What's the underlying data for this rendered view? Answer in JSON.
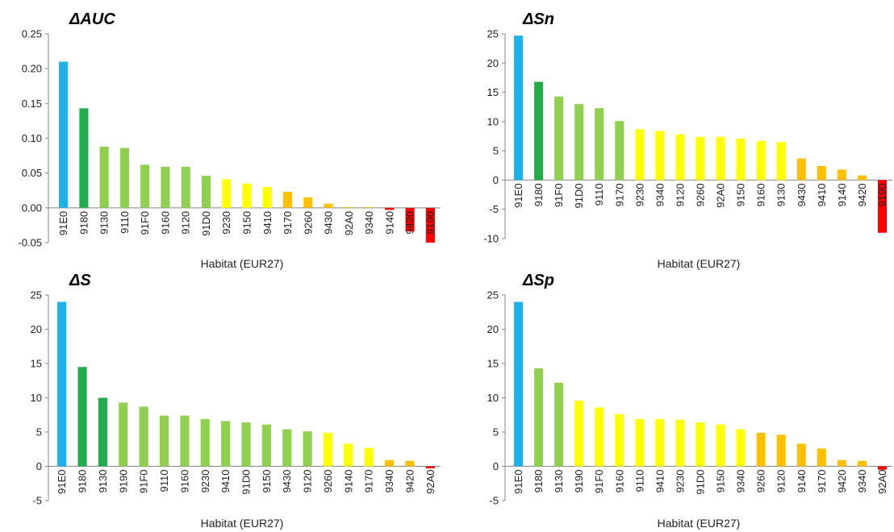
{
  "colors": {
    "blue": "#1fb1ea",
    "dark_green": "#22ac4c",
    "light_green": "#8fd14f",
    "yellow": "#ffff00",
    "orange": "#ffc000",
    "red": "#ff0000"
  },
  "chart_data": [
    {
      "type": "bar",
      "title": "ΔAUC",
      "xlabel": "Habitat (EUR27)",
      "ylabel": "",
      "ylim": [
        -0.05,
        0.25
      ],
      "yticks": [
        "-0.05",
        "0.00",
        "0.05",
        "0.10",
        "0.15",
        "0.20",
        "0.25"
      ],
      "grid": false,
      "categories": [
        "91E0",
        "9180",
        "9130",
        "9110",
        "91F0",
        "9160",
        "9120",
        "91D0",
        "9230",
        "9150",
        "9410",
        "9170",
        "9260",
        "9430",
        "92A0",
        "9340",
        "9140",
        "9420",
        "9190"
      ],
      "values": [
        0.21,
        0.143,
        0.088,
        0.086,
        0.062,
        0.059,
        0.059,
        0.046,
        0.041,
        0.035,
        0.03,
        0.023,
        0.015,
        0.006,
        0.001,
        0.001,
        -0.003,
        -0.034,
        -0.05
      ],
      "bar_colors": [
        "blue",
        "dark_green",
        "light_green",
        "light_green",
        "light_green",
        "light_green",
        "light_green",
        "light_green",
        "yellow",
        "yellow",
        "yellow",
        "orange",
        "orange",
        "orange",
        "orange",
        "orange",
        "red",
        "red",
        "red"
      ]
    },
    {
      "type": "bar",
      "title": "ΔSn",
      "xlabel": "Habitat (EUR27)",
      "ylabel": "",
      "ylim": [
        -10,
        25
      ],
      "yticks": [
        "-10",
        "-5",
        "0",
        "5",
        "10",
        "15",
        "20",
        "25"
      ],
      "grid": false,
      "categories": [
        "91E0",
        "9180",
        "91F0",
        "91D0",
        "9110",
        "9170",
        "9230",
        "9340",
        "9120",
        "9260",
        "92A0",
        "9150",
        "9160",
        "9130",
        "9430",
        "9410",
        "9140",
        "9420",
        "9190"
      ],
      "values": [
        24.7,
        16.8,
        14.3,
        13.0,
        12.3,
        10.1,
        8.7,
        8.4,
        7.8,
        7.4,
        7.4,
        7.1,
        6.7,
        6.5,
        3.7,
        2.4,
        1.8,
        0.8,
        -9.0
      ],
      "bar_colors": [
        "blue",
        "dark_green",
        "light_green",
        "light_green",
        "light_green",
        "light_green",
        "yellow",
        "yellow",
        "yellow",
        "yellow",
        "yellow",
        "yellow",
        "yellow",
        "yellow",
        "orange",
        "orange",
        "orange",
        "orange",
        "red"
      ]
    },
    {
      "type": "bar",
      "title": "ΔS",
      "xlabel": "Habitat (EUR27)",
      "ylabel": "",
      "ylim": [
        -5,
        25
      ],
      "yticks": [
        "-5",
        "0",
        "5",
        "10",
        "15",
        "20",
        "25"
      ],
      "grid": false,
      "categories": [
        "91E0",
        "9180",
        "9130",
        "9190",
        "91F0",
        "9110",
        "9160",
        "9230",
        "9410",
        "91D0",
        "9150",
        "9430",
        "9120",
        "9260",
        "9140",
        "9170",
        "9340",
        "9420",
        "92A0"
      ],
      "values": [
        24.0,
        14.5,
        10.0,
        9.3,
        8.7,
        7.4,
        7.4,
        6.9,
        6.6,
        6.4,
        6.1,
        5.4,
        5.1,
        4.9,
        3.3,
        2.7,
        0.9,
        0.8,
        -0.3
      ],
      "bar_colors": [
        "blue",
        "dark_green",
        "dark_green",
        "light_green",
        "light_green",
        "light_green",
        "light_green",
        "light_green",
        "light_green",
        "light_green",
        "light_green",
        "light_green",
        "light_green",
        "yellow",
        "yellow",
        "yellow",
        "orange",
        "orange",
        "red"
      ]
    },
    {
      "type": "bar",
      "title": "ΔSp",
      "xlabel": "Habitat (EUR27)",
      "ylabel": "",
      "ylim": [
        -5,
        25
      ],
      "yticks": [
        "-5",
        "0",
        "5",
        "10",
        "15",
        "20",
        "25"
      ],
      "grid": false,
      "categories": [
        "91E0",
        "9180",
        "9130",
        "9190",
        "91F0",
        "9160",
        "9110",
        "9410",
        "9230",
        "91D0",
        "9150",
        "9340",
        "9260",
        "9120",
        "9140",
        "9170",
        "9420",
        "9340",
        "92A0"
      ],
      "values": [
        24.0,
        14.3,
        12.2,
        9.6,
        8.6,
        7.6,
        6.9,
        6.9,
        6.8,
        6.4,
        6.1,
        5.4,
        4.9,
        4.6,
        3.3,
        2.6,
        0.9,
        0.8,
        -0.5
      ],
      "bar_colors": [
        "blue",
        "light_green",
        "light_green",
        "yellow",
        "yellow",
        "yellow",
        "yellow",
        "yellow",
        "yellow",
        "yellow",
        "yellow",
        "yellow",
        "orange",
        "orange",
        "orange",
        "orange",
        "orange",
        "orange",
        "red"
      ]
    }
  ]
}
